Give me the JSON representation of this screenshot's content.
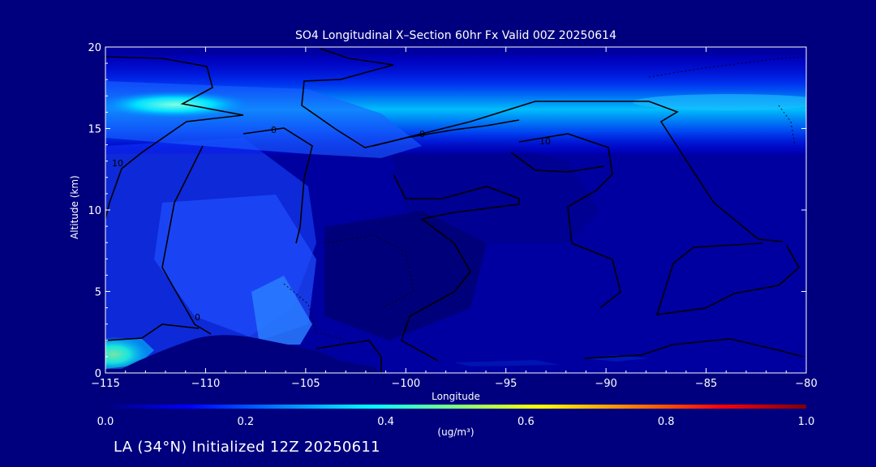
{
  "chart_data": {
    "type": "heatmap",
    "title": "SO4 Longitudinal X–Section 60hr  Fx Valid 00Z 20250614",
    "xlabel": "Longitude",
    "ylabel": "Altitude (km)",
    "xlim": [
      -115,
      -80
    ],
    "ylim": [
      0,
      20
    ],
    "x_ticks": [
      "−115",
      "−110",
      "−105",
      "−100",
      "−95",
      "−90",
      "−85",
      "−80"
    ],
    "y_ticks": [
      "0",
      "5",
      "10",
      "15",
      "20"
    ],
    "colorbar": {
      "min": 0.0,
      "max": 1.0,
      "ticks": [
        "0.0",
        "0.2",
        "0.4",
        "0.6",
        "0.8",
        "1.0"
      ],
      "label": "(ug/m³)",
      "colormap": [
        "#00007f",
        "#0000ff",
        "#00ffff",
        "#ffff00",
        "#ff0000",
        "#7f0000"
      ]
    },
    "contour_labels": [
      "0",
      "0",
      "10",
      "10",
      "0"
    ]
  },
  "footer": "LA (34°N) Initialized 12Z 20250611"
}
